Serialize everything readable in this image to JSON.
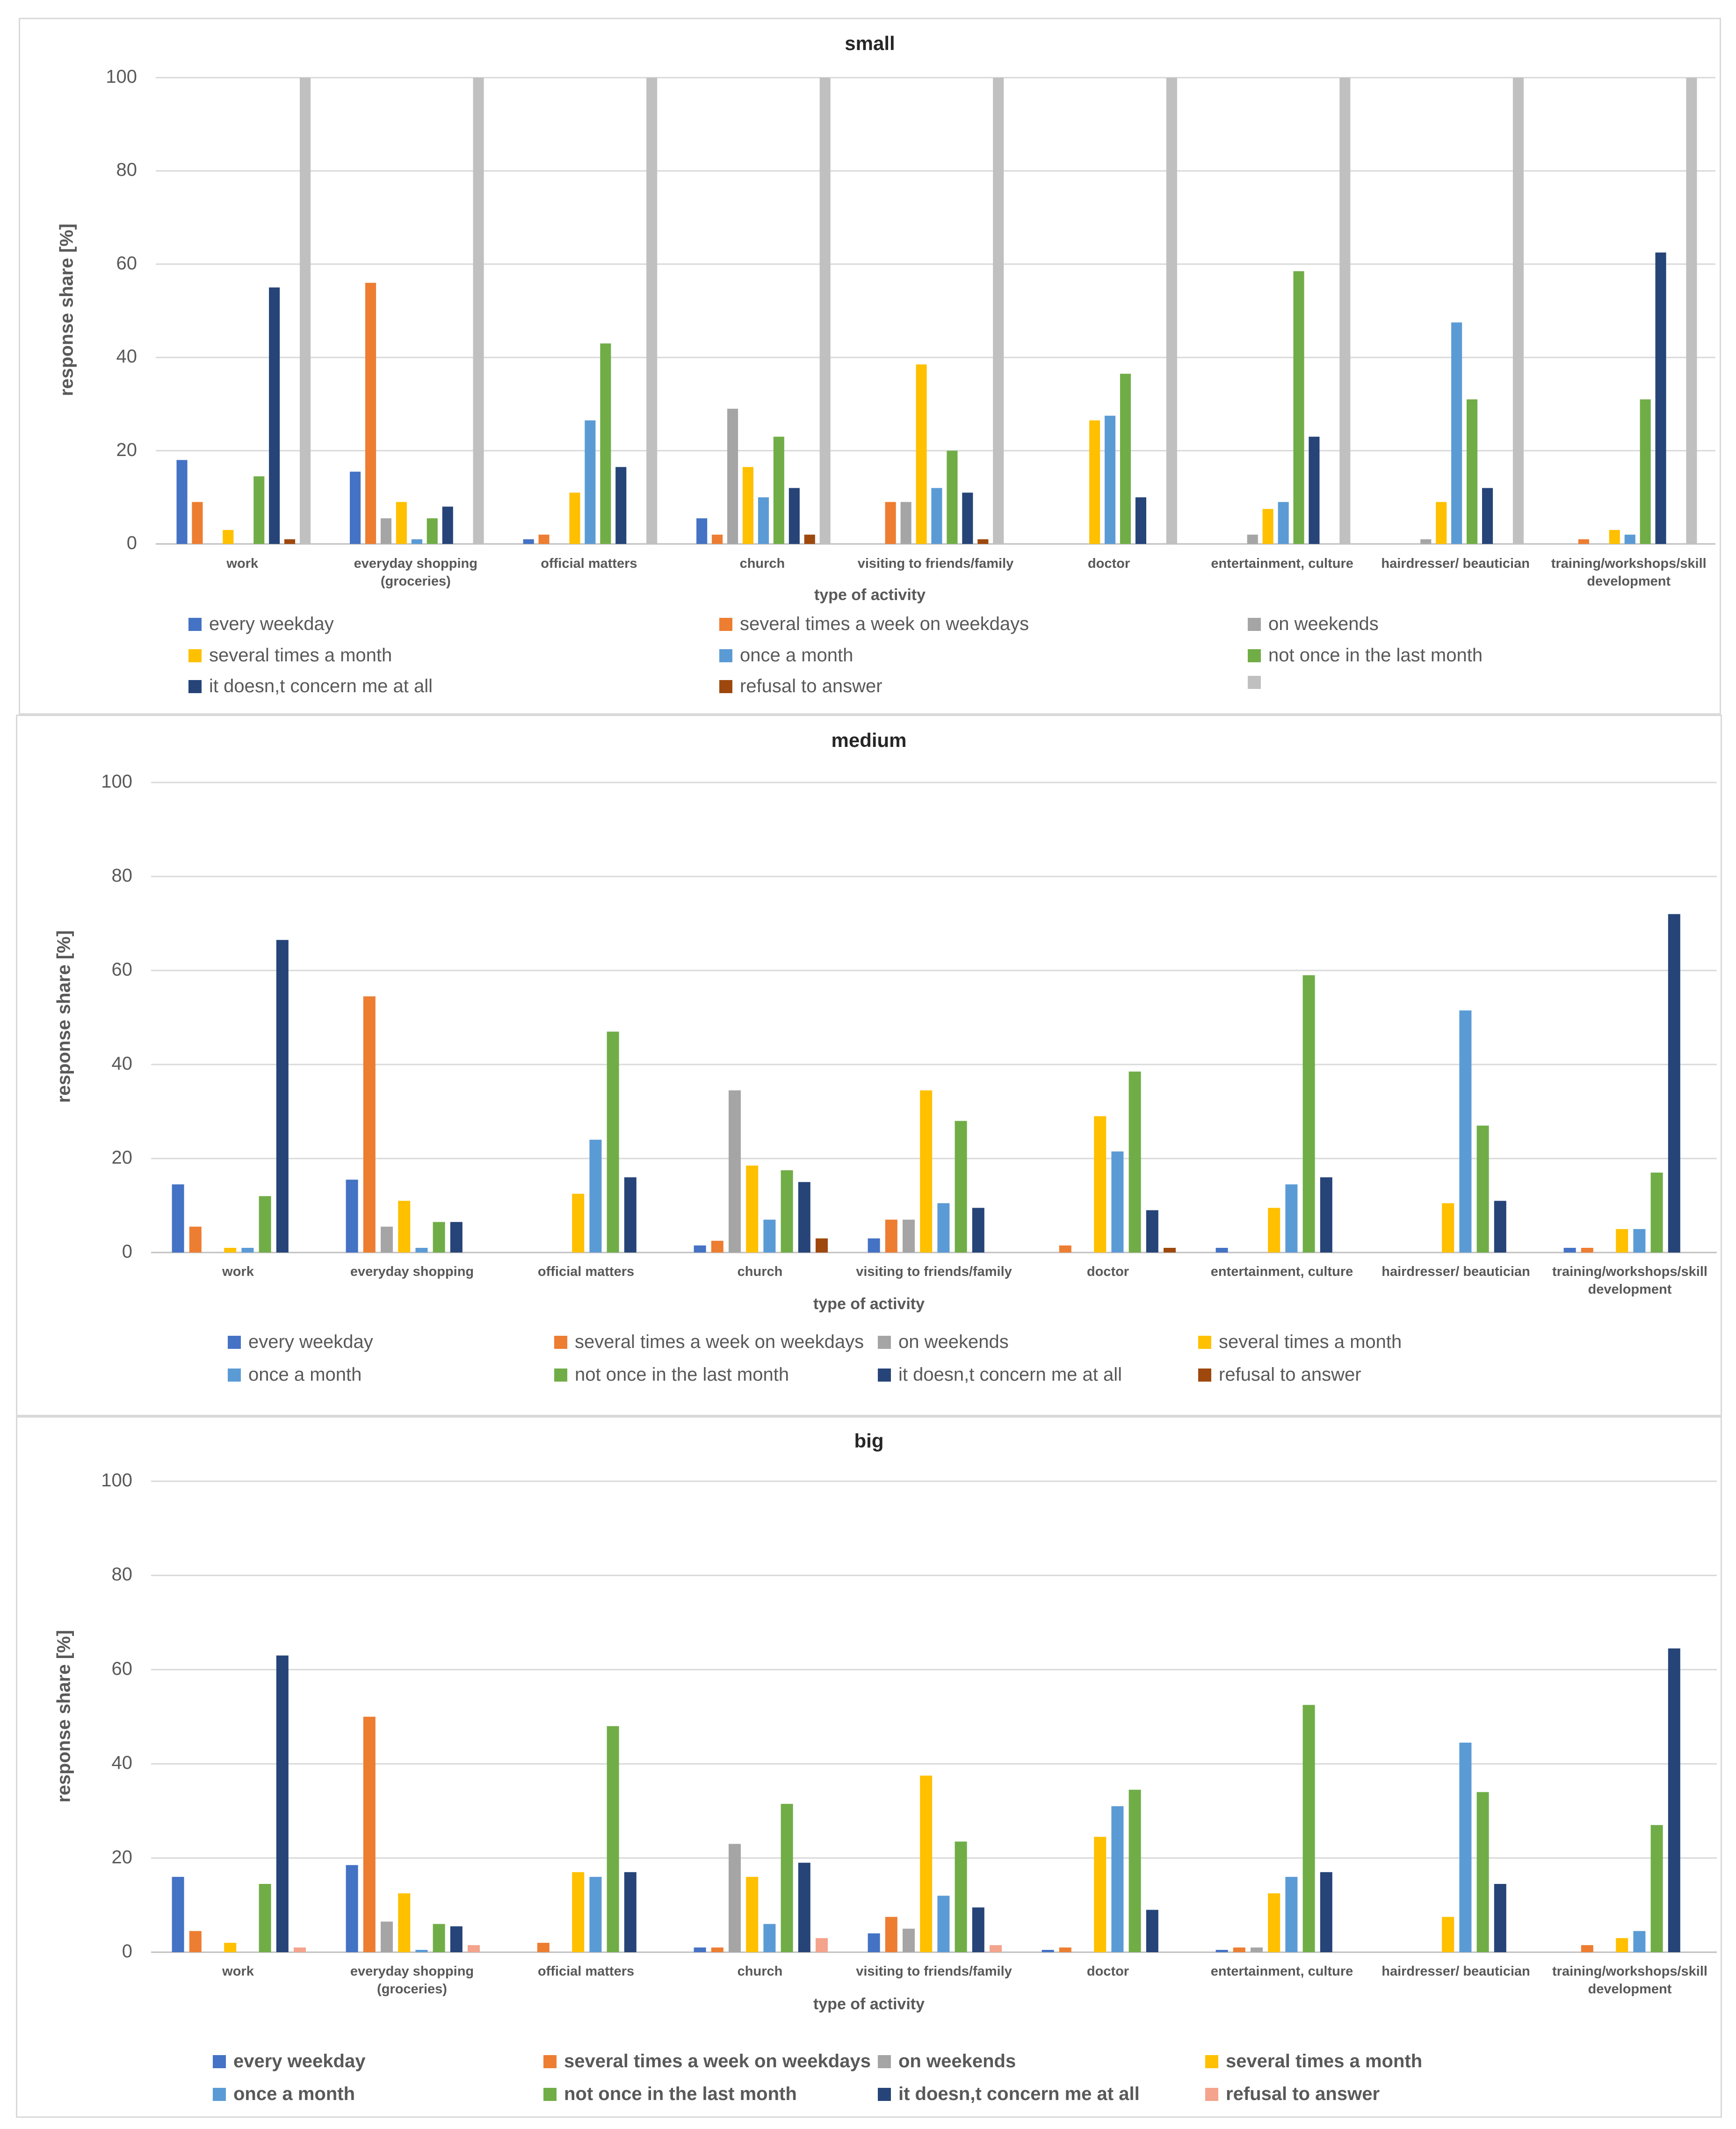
{
  "chart_data": [
    {
      "type": "bar",
      "title": "small",
      "xlabel": "type of activity",
      "ylabel": "response share [%]",
      "ylim": [
        0,
        100
      ],
      "yticks": [
        0,
        20,
        40,
        60,
        80,
        100
      ],
      "categories": [
        "work",
        "everyday shopping (groceries)",
        "official matters",
        "church",
        "visiting to friends/family",
        "doctor",
        "entertainment, culture",
        "hairdresser/ beautician",
        "training/workshops/skill development"
      ],
      "series": [
        {
          "name": "every weekday",
          "color": "#4472c4",
          "values": [
            18,
            15.5,
            1,
            5.5,
            0,
            0,
            0,
            0,
            0
          ]
        },
        {
          "name": "several times a week on weekdays",
          "color": "#ed7d31",
          "values": [
            9,
            56,
            2,
            2,
            9,
            0,
            0,
            0,
            1
          ]
        },
        {
          "name": "on weekends",
          "color": "#a5a5a5",
          "values": [
            0,
            5.5,
            0,
            29,
            9,
            0,
            2,
            1,
            0
          ]
        },
        {
          "name": "several times a month",
          "color": "#ffc000",
          "values": [
            3,
            9,
            11,
            16.5,
            38.5,
            26.5,
            7.5,
            9,
            3
          ]
        },
        {
          "name": "once a month",
          "color": "#5b9bd5",
          "values": [
            0,
            1,
            26.5,
            10,
            12,
            27.5,
            9,
            47.5,
            2
          ]
        },
        {
          "name": "not once in the last month",
          "color": "#70ad47",
          "values": [
            14.5,
            5.5,
            43,
            23,
            20,
            36.5,
            58.5,
            31,
            31
          ]
        },
        {
          "name": "it doesn,t concern me at all",
          "color": "#264478",
          "values": [
            55,
            8,
            16.5,
            12,
            11,
            10,
            23,
            12,
            62.5
          ]
        },
        {
          "name": "refusal to answer",
          "color": "#9e480e",
          "values": [
            1,
            0,
            0,
            2,
            1,
            0,
            0,
            0,
            0
          ]
        },
        {
          "name": "",
          "color": "#c0c0c0",
          "values": [
            100,
            100,
            100,
            100,
            100,
            100,
            100,
            100,
            100
          ]
        }
      ]
    },
    {
      "type": "bar",
      "title": "medium",
      "xlabel": "type of activity",
      "ylabel": "response share [%]",
      "ylim": [
        0,
        100
      ],
      "yticks": [
        0,
        20,
        40,
        60,
        80,
        100
      ],
      "categories": [
        "work",
        "everyday shopping",
        "official matters",
        "church",
        "visiting to friends/family",
        "doctor",
        "entertainment, culture",
        "hairdresser/ beautician",
        "training/workshops/skill development"
      ],
      "series": [
        {
          "name": "every weekday",
          "color": "#4472c4",
          "values": [
            14.5,
            15.5,
            0,
            1.5,
            3,
            0,
            1,
            0,
            1
          ]
        },
        {
          "name": "several times a week on weekdays",
          "color": "#ed7d31",
          "values": [
            5.5,
            54.5,
            0,
            2.5,
            7,
            1.5,
            0,
            0,
            1
          ]
        },
        {
          "name": "on weekends",
          "color": "#a5a5a5",
          "values": [
            0,
            5.5,
            0,
            34.5,
            7,
            0,
            0,
            0,
            0
          ]
        },
        {
          "name": "several times a month",
          "color": "#ffc000",
          "values": [
            1,
            11,
            12.5,
            18.5,
            34.5,
            29,
            9.5,
            10.5,
            5
          ]
        },
        {
          "name": "once a month",
          "color": "#5b9bd5",
          "values": [
            1,
            1,
            24,
            7,
            10.5,
            21.5,
            14.5,
            51.5,
            5
          ]
        },
        {
          "name": "not once in the last month",
          "color": "#70ad47",
          "values": [
            12,
            6.5,
            47,
            17.5,
            28,
            38.5,
            59,
            27,
            17
          ]
        },
        {
          "name": "it doesn,t concern me at all",
          "color": "#264478",
          "values": [
            66.5,
            6.5,
            16,
            15,
            9.5,
            9,
            16,
            11,
            72
          ]
        },
        {
          "name": "refusal to answer",
          "color": "#9e480e",
          "values": [
            0,
            0,
            0,
            3,
            0,
            1,
            0,
            0,
            0
          ]
        }
      ]
    },
    {
      "type": "bar",
      "title": "big",
      "xlabel": "type of activity",
      "ylabel": "response share [%]",
      "ylim": [
        0,
        100
      ],
      "yticks": [
        0,
        20,
        40,
        60,
        80,
        100
      ],
      "categories": [
        "work",
        "everyday shopping (groceries)",
        "official matters",
        "church",
        "visiting to friends/family",
        "doctor",
        "entertainment, culture",
        "hairdresser/ beautician",
        "training/workshops/skill development"
      ],
      "series": [
        {
          "name": "every weekday",
          "color": "#4472c4",
          "values": [
            16,
            18.5,
            0,
            1,
            4,
            0.5,
            0.5,
            0,
            0
          ]
        },
        {
          "name": "several times a week on weekdays",
          "color": "#ed7d31",
          "values": [
            4.5,
            50,
            2,
            1,
            7.5,
            1,
            1,
            0,
            1.5
          ]
        },
        {
          "name": "on weekends",
          "color": "#a5a5a5",
          "values": [
            0,
            6.5,
            0,
            23,
            5,
            0,
            1,
            0,
            0
          ]
        },
        {
          "name": "several times a month",
          "color": "#ffc000",
          "values": [
            2,
            12.5,
            17,
            16,
            37.5,
            24.5,
            12.5,
            7.5,
            3
          ]
        },
        {
          "name": "once a month",
          "color": "#5b9bd5",
          "values": [
            0,
            0.5,
            16,
            6,
            12,
            31,
            16,
            44.5,
            4.5
          ]
        },
        {
          "name": "not once in the last month",
          "color": "#70ad47",
          "values": [
            14.5,
            6,
            48,
            31.5,
            23.5,
            34.5,
            52.5,
            34,
            27
          ]
        },
        {
          "name": "it doesn,t concern me at all",
          "color": "#264478",
          "values": [
            63,
            5.5,
            17,
            19,
            9.5,
            9,
            17,
            14.5,
            64.5
          ]
        },
        {
          "name": "refusal to answer",
          "color": "#f4a38c",
          "values": [
            1,
            1.5,
            0,
            3,
            1.5,
            0,
            0,
            0,
            0
          ]
        }
      ]
    }
  ]
}
